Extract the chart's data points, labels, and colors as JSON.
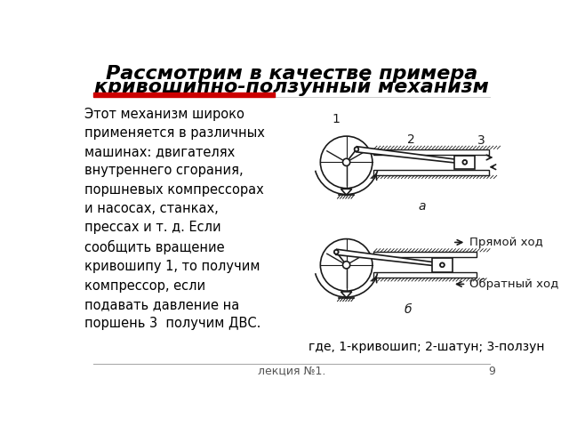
{
  "bg_color": "#ffffff",
  "title_line1": "Рассмотрим в качестве примера",
  "title_line2": "кривошипно-ползунный механизм",
  "title_fontsize": 16,
  "title_color": "#000000",
  "red_bar_color": "#cc0000",
  "body_text": "Этот механизм широко\nприменяется в различных\nмашинах: двигателях\nвнутреннего сгорания,\nпоршневых компрессорах\nи насосах, станках,\nпрессах и т. д. Если\nсообщить вращение\nкривошипу 1, то получим\nкомпрессор, если\nподавать давление на\nпоршень 3  получим ДВС.",
  "body_fontsize": 10.5,
  "caption_text": "где, 1-кривошип; 2-шатун; 3-ползун",
  "caption_fontsize": 10,
  "footer_text": "лекция №1.",
  "footer_page": "9",
  "footer_fontsize": 9,
  "diagram_color": "#1a1a1a",
  "label_a": "а",
  "label_b": "б",
  "label_1": "1",
  "label_2": "2",
  "label_3": "3",
  "pryamoy_khod": "Прямой ход",
  "obratny_khod": "Обратный ход"
}
